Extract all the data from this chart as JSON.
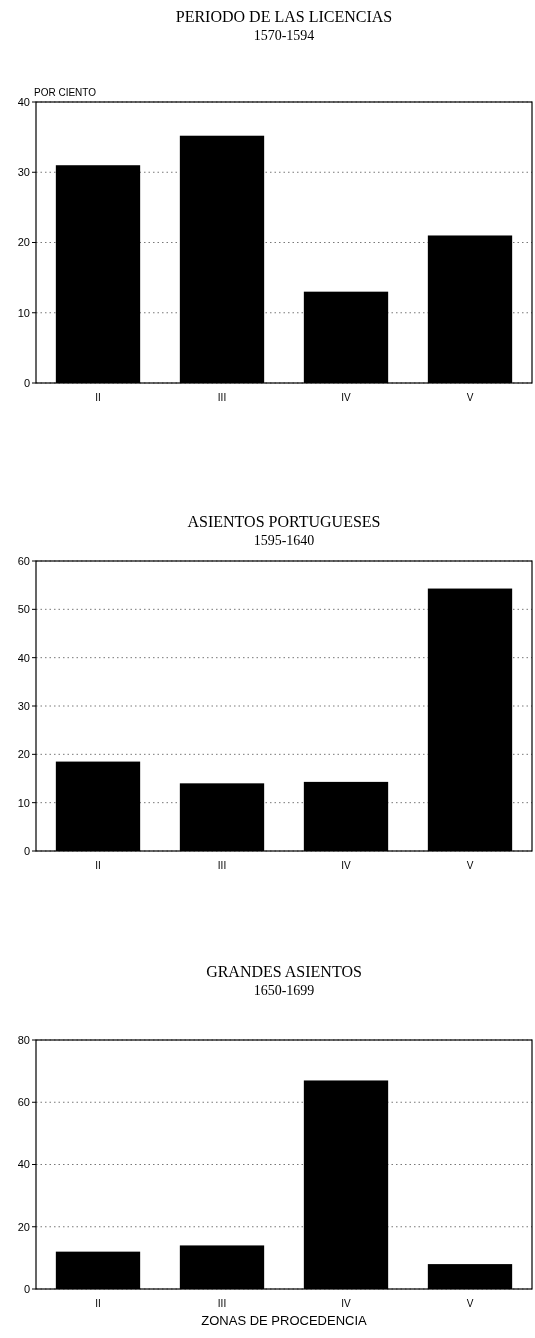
{
  "chart_data": [
    {
      "type": "bar",
      "title": "PERIODO DE LAS LICENCIAS",
      "subtitle": "1570-1594",
      "ylabel": "POR CIENTO",
      "categories": [
        "II",
        "III",
        "IV",
        "V"
      ],
      "values": [
        31,
        35.2,
        13,
        21
      ],
      "color": "#000000",
      "ylim": [
        0,
        40
      ],
      "yticks": [
        0,
        10,
        20,
        30,
        40
      ],
      "grid": "y"
    },
    {
      "type": "bar",
      "title": "ASIENTOS PORTUGUESES",
      "subtitle": "1595-1640",
      "categories": [
        "II",
        "III",
        "IV",
        "V"
      ],
      "values": [
        18.5,
        14,
        14.3,
        54.3
      ],
      "color": "#000000",
      "ylim": [
        0,
        60
      ],
      "yticks": [
        0,
        10,
        20,
        30,
        40,
        50,
        60
      ],
      "grid": "y"
    },
    {
      "type": "bar",
      "title": "GRANDES ASIENTOS",
      "subtitle": "1650-1699",
      "xlabel": "ZONAS DE PROCEDENCIA",
      "categories": [
        "II",
        "III",
        "IV",
        "V"
      ],
      "values": [
        12,
        14,
        67,
        8
      ],
      "color": "#000000",
      "ylim": [
        0,
        80
      ],
      "yticks": [
        0,
        20,
        40,
        60,
        80
      ],
      "grid": "y"
    }
  ]
}
